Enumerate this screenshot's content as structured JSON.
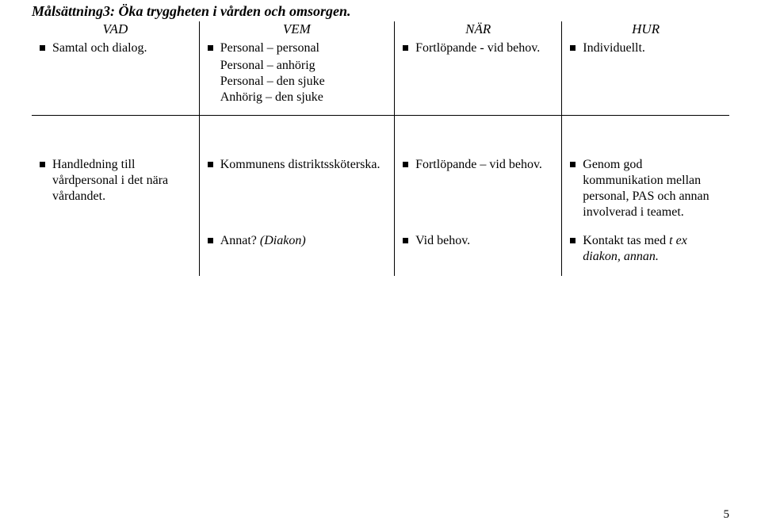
{
  "title": "Målsättning3: Öka tryggheten i vården och omsorgen.",
  "headers": {
    "c0": "VAD",
    "c1": "VEM",
    "c2": "NÄR",
    "c3": "HUR"
  },
  "row1": {
    "vad": "Samtal och dialog.",
    "vem_lead": "Personal – personal",
    "vem_l2": "Personal – anhörig",
    "vem_l3": "Personal – den sjuke",
    "vem_l4": "Anhörig – den sjuke",
    "nar": "Fortlöpande - vid behov.",
    "hur": "Individuellt."
  },
  "row2": {
    "vad": "Handledning till vårdpersonal i det nära vårdandet.",
    "vem": "Kommunens distriktssköterska.",
    "nar": "Fortlöpande – vid behov.",
    "hur": "Genom god kommunikation mellan personal, PAS och annan involverad i teamet."
  },
  "row3": {
    "vem_a": "Annat? ",
    "vem_b": "(Diakon)",
    "nar": "Vid behov.",
    "hur_a": "Kontakt tas med ",
    "hur_b": "t ex diakon, annan."
  },
  "pagenum": "5"
}
